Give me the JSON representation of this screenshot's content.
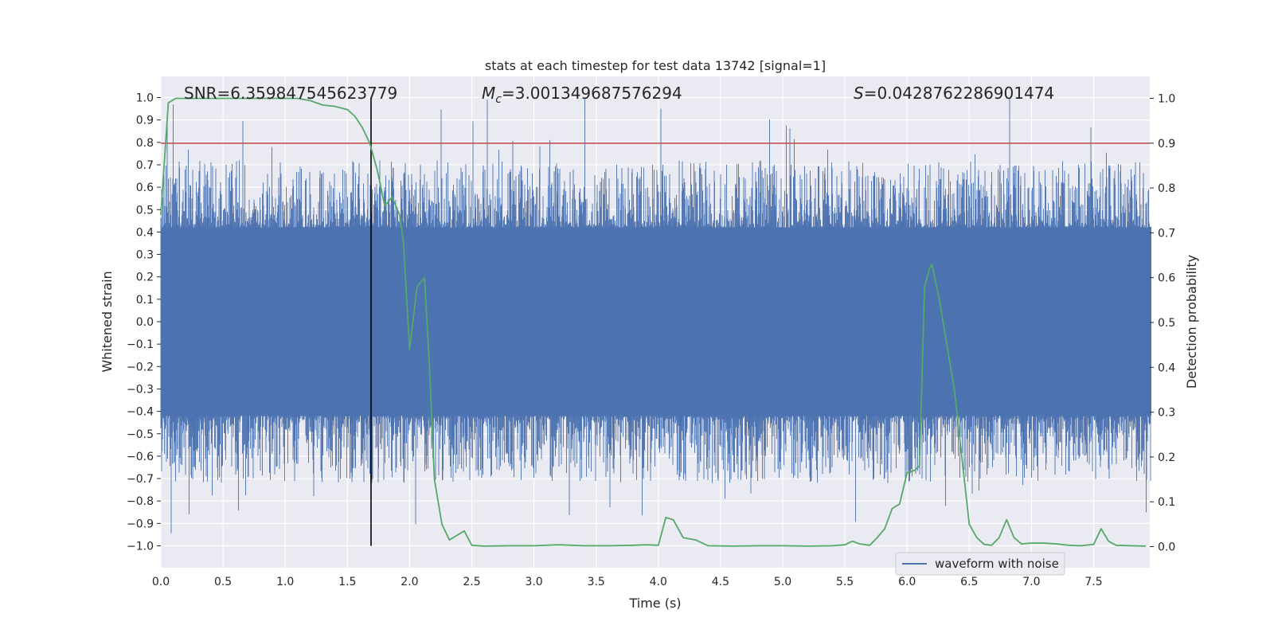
{
  "chart_data": {
    "type": "line",
    "title": "stats at each timestep for test data 13742 [signal=1]",
    "xlabel": "Time (s)",
    "ylabel": "Whitened strain",
    "y2label": "Detection probability",
    "xlim": [
      0.0,
      8.0
    ],
    "ylim": [
      -1.1,
      1.1
    ],
    "y2lim": [
      -0.05,
      1.05
    ],
    "xticks": [
      "0.0",
      "0.5",
      "1.0",
      "1.5",
      "2.0",
      "2.5",
      "3.0",
      "3.5",
      "4.0",
      "4.5",
      "5.0",
      "5.5",
      "6.0",
      "6.5",
      "7.0",
      "7.5"
    ],
    "yticks": [
      "1.0",
      "0.9",
      "0.8",
      "0.7",
      "0.6",
      "0.5",
      "0.4",
      "0.3",
      "0.2",
      "0.1",
      "0.0",
      "−0.1",
      "−0.2",
      "−0.3",
      "−0.4",
      "−0.5",
      "−0.6",
      "−0.7",
      "−0.8",
      "−0.9",
      "−1.0"
    ],
    "y2ticks": [
      "1.0",
      "0.9",
      "0.8",
      "0.7",
      "0.6",
      "0.5",
      "0.4",
      "0.3",
      "0.2",
      "0.1",
      "0.0"
    ],
    "annotations": {
      "snr": "SNR=6.359847545623779",
      "mc_symbol": "M",
      "mc_sub": "c",
      "mc_value": "=3.001349687576294",
      "s_symbol": "S",
      "s_value": "=0.0428762286901474"
    },
    "legend": {
      "label": "waveform with noise",
      "position": "lower-right"
    },
    "grid": true,
    "threshold_probability": 0.9,
    "peak_time": 1.69,
    "colors": {
      "waveform": "#4c72b0",
      "probability": "#55a868",
      "threshold": "#c44e52",
      "peak": "#000000",
      "plot_bg": "#eaeaf2"
    },
    "series": [
      {
        "name": "waveform with noise",
        "axis": "left",
        "kind": "noise",
        "envelope": [
          -0.42,
          0.42
        ],
        "extreme_range": [
          -0.95,
          1.0
        ]
      },
      {
        "axis": "right",
        "x": [
          0.0,
          0.06,
          0.12,
          0.2,
          0.3,
          0.4,
          0.5,
          0.6,
          0.7,
          0.8,
          0.9,
          1.0,
          1.1,
          1.2,
          1.3,
          1.4,
          1.5,
          1.56,
          1.62,
          1.68,
          1.74,
          1.8,
          1.86,
          1.92,
          1.95,
          2.0,
          2.06,
          2.12,
          2.16,
          2.2,
          2.26,
          2.32,
          2.38,
          2.44,
          2.5,
          2.6,
          2.8,
          3.0,
          3.2,
          3.4,
          3.6,
          3.8,
          3.9,
          4.0,
          4.06,
          4.12,
          4.2,
          4.3,
          4.4,
          4.6,
          4.8,
          5.0,
          5.2,
          5.4,
          5.5,
          5.56,
          5.62,
          5.7,
          5.76,
          5.82,
          5.88,
          5.94,
          6.0,
          6.06,
          6.1,
          6.14,
          6.18,
          6.2,
          6.26,
          6.32,
          6.38,
          6.44,
          6.5,
          6.56,
          6.62,
          6.68,
          6.74,
          6.8,
          6.86,
          6.92,
          7.0,
          7.1,
          7.2,
          7.3,
          7.4,
          7.5,
          7.56,
          7.62,
          7.68,
          7.8,
          7.92
        ],
        "y": [
          0.74,
          0.99,
          1.0,
          1.0,
          1.0,
          1.0,
          1.0,
          1.0,
          1.0,
          1.0,
          1.0,
          1.0,
          1.0,
          0.995,
          0.985,
          0.982,
          0.975,
          0.96,
          0.935,
          0.9,
          0.84,
          0.76,
          0.78,
          0.74,
          0.68,
          0.44,
          0.58,
          0.6,
          0.4,
          0.15,
          0.05,
          0.015,
          0.025,
          0.035,
          0.003,
          0.001,
          0.002,
          0.002,
          0.004,
          0.002,
          0.002,
          0.003,
          0.004,
          0.003,
          0.065,
          0.06,
          0.02,
          0.015,
          0.002,
          0.001,
          0.002,
          0.002,
          0.001,
          0.002,
          0.004,
          0.012,
          0.006,
          0.003,
          0.02,
          0.04,
          0.085,
          0.095,
          0.165,
          0.17,
          0.18,
          0.58,
          0.62,
          0.63,
          0.55,
          0.45,
          0.35,
          0.2,
          0.05,
          0.02,
          0.005,
          0.003,
          0.02,
          0.06,
          0.02,
          0.006,
          0.008,
          0.008,
          0.006,
          0.003,
          0.002,
          0.005,
          0.04,
          0.012,
          0.003,
          0.002,
          0.001
        ]
      }
    ]
  }
}
